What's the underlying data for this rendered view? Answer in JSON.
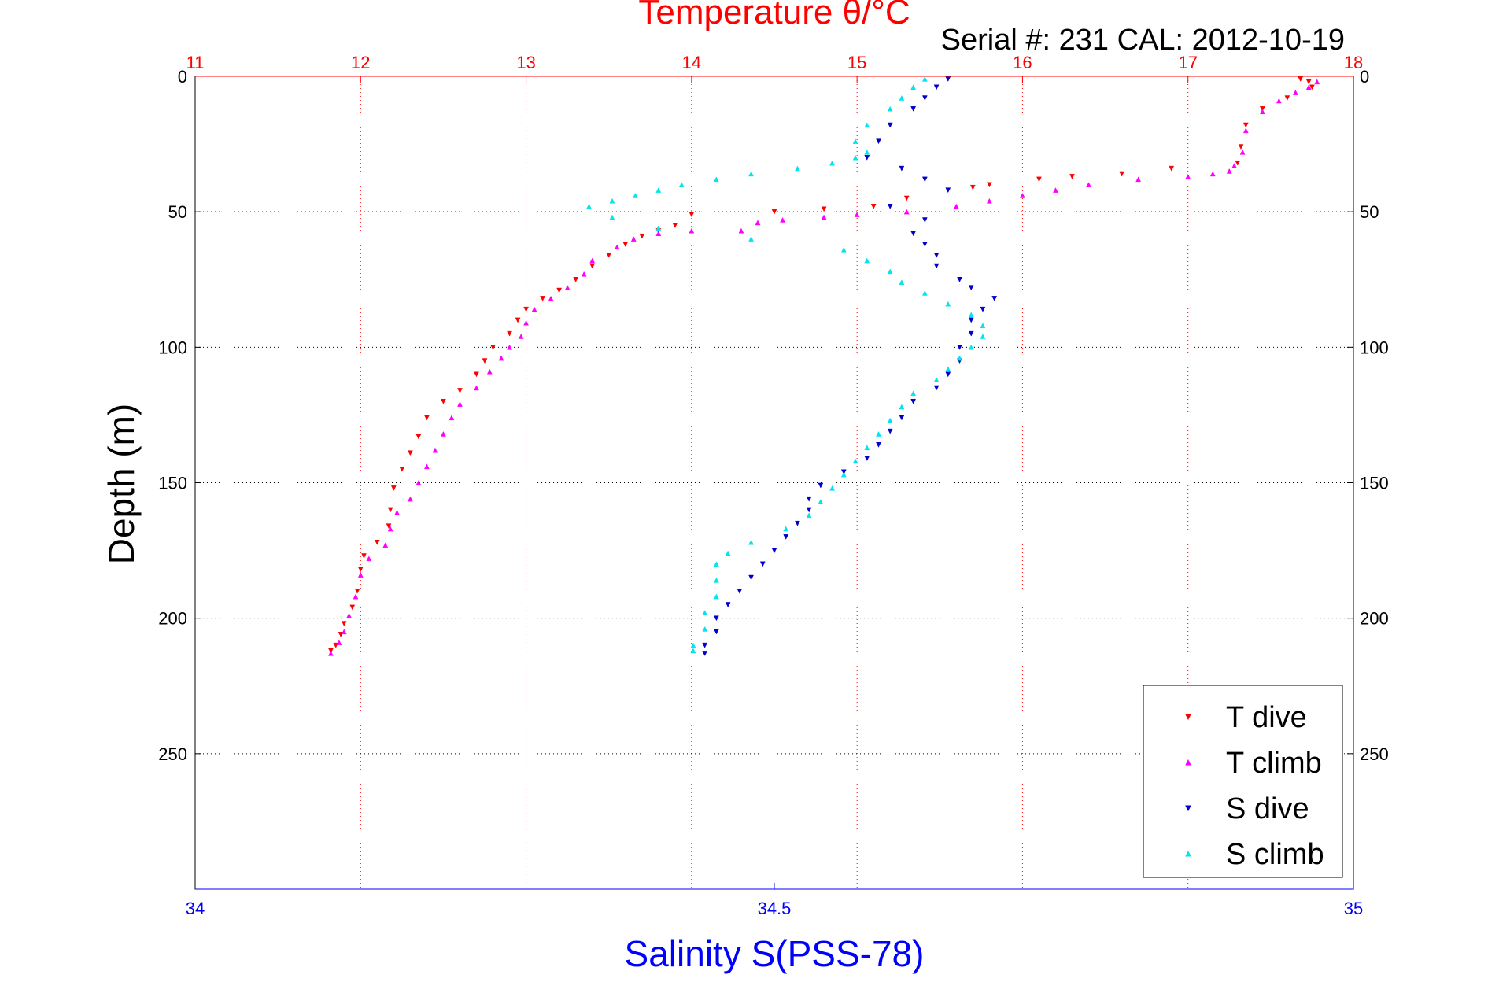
{
  "chart_data": {
    "type": "scatter",
    "title": "Temperature θ/°C",
    "subtitle": "Serial #: 231  CAL: 2012-10-19",
    "ylabel": "Depth (m)",
    "xlabel_bottom": "Salinity S(PSS-78)",
    "top_axis": {
      "label": "Temperature θ/°C",
      "min": 11,
      "max": 18,
      "ticks": [
        "11",
        "12",
        "13",
        "14",
        "15",
        "16",
        "17",
        "18"
      ]
    },
    "bottom_axis": {
      "label": "Salinity S(PSS-78)",
      "min": 34,
      "max": 35,
      "ticks": [
        "34",
        "34.5",
        "35"
      ]
    },
    "y_axis": {
      "min": 0,
      "max": 300,
      "reversed": true,
      "ticks": [
        "0",
        "50",
        "100",
        "150",
        "200",
        "250"
      ]
    },
    "grid": true,
    "legend_position": "bottom-right",
    "colors": {
      "T dive": "#ff0000",
      "T climb": "#ff00ff",
      "S dive": "#0000cc",
      "S climb": "#00e5ee"
    },
    "series": [
      {
        "name": "T dive",
        "axis": "temperature",
        "marker": "triangle-down",
        "color": "#ff0000",
        "points": [
          [
            17.68,
            1
          ],
          [
            17.73,
            2
          ],
          [
            17.75,
            4
          ],
          [
            17.6,
            8
          ],
          [
            17.45,
            12
          ],
          [
            17.35,
            18
          ],
          [
            17.32,
            26
          ],
          [
            17.3,
            32
          ],
          [
            16.9,
            34
          ],
          [
            16.6,
            36
          ],
          [
            16.3,
            37
          ],
          [
            16.1,
            38
          ],
          [
            15.8,
            40
          ],
          [
            15.7,
            41
          ],
          [
            15.3,
            45
          ],
          [
            15.1,
            48
          ],
          [
            14.8,
            49
          ],
          [
            14.5,
            50
          ],
          [
            14.0,
            51
          ],
          [
            13.9,
            55
          ],
          [
            13.8,
            57
          ],
          [
            13.7,
            59
          ],
          [
            13.6,
            62
          ],
          [
            13.5,
            66
          ],
          [
            13.4,
            70
          ],
          [
            13.3,
            75
          ],
          [
            13.2,
            79
          ],
          [
            13.1,
            82
          ],
          [
            13.0,
            86
          ],
          [
            12.95,
            90
          ],
          [
            12.9,
            95
          ],
          [
            12.8,
            100
          ],
          [
            12.75,
            105
          ],
          [
            12.7,
            110
          ],
          [
            12.6,
            116
          ],
          [
            12.5,
            120
          ],
          [
            12.4,
            126
          ],
          [
            12.35,
            133
          ],
          [
            12.3,
            139
          ],
          [
            12.25,
            145
          ],
          [
            12.2,
            152
          ],
          [
            12.18,
            160
          ],
          [
            12.17,
            166
          ],
          [
            12.1,
            172
          ],
          [
            12.02,
            177
          ],
          [
            12.0,
            182
          ],
          [
            11.98,
            190
          ],
          [
            11.95,
            196
          ],
          [
            11.9,
            202
          ],
          [
            11.88,
            206
          ],
          [
            11.85,
            210
          ],
          [
            11.82,
            212
          ]
        ]
      },
      {
        "name": "T climb",
        "axis": "temperature",
        "marker": "triangle-up",
        "color": "#ff00ff",
        "points": [
          [
            17.78,
            2
          ],
          [
            17.73,
            4
          ],
          [
            17.65,
            6
          ],
          [
            17.55,
            9
          ],
          [
            17.45,
            13
          ],
          [
            17.35,
            20
          ],
          [
            17.33,
            28
          ],
          [
            17.28,
            33
          ],
          [
            17.25,
            35
          ],
          [
            17.15,
            36
          ],
          [
            17.0,
            37
          ],
          [
            16.7,
            38
          ],
          [
            16.4,
            40
          ],
          [
            16.2,
            42
          ],
          [
            16.0,
            44
          ],
          [
            15.8,
            46
          ],
          [
            15.6,
            48
          ],
          [
            15.3,
            50
          ],
          [
            15.0,
            51
          ],
          [
            14.8,
            52
          ],
          [
            14.55,
            53
          ],
          [
            14.4,
            54
          ],
          [
            14.3,
            57
          ],
          [
            14.0,
            57
          ],
          [
            13.8,
            58
          ],
          [
            13.65,
            60
          ],
          [
            13.55,
            63
          ],
          [
            13.4,
            68
          ],
          [
            13.35,
            73
          ],
          [
            13.25,
            78
          ],
          [
            13.15,
            82
          ],
          [
            13.05,
            86
          ],
          [
            13.0,
            91
          ],
          [
            12.97,
            96
          ],
          [
            12.9,
            100
          ],
          [
            12.85,
            104
          ],
          [
            12.78,
            109
          ],
          [
            12.7,
            115
          ],
          [
            12.6,
            121
          ],
          [
            12.55,
            126
          ],
          [
            12.5,
            132
          ],
          [
            12.45,
            138
          ],
          [
            12.4,
            144
          ],
          [
            12.35,
            150
          ],
          [
            12.3,
            156
          ],
          [
            12.22,
            161
          ],
          [
            12.18,
            167
          ],
          [
            12.15,
            173
          ],
          [
            12.05,
            178
          ],
          [
            12.0,
            184
          ],
          [
            11.97,
            192
          ],
          [
            11.93,
            199
          ],
          [
            11.9,
            205
          ],
          [
            11.87,
            209
          ],
          [
            11.82,
            213
          ]
        ]
      },
      {
        "name": "S dive",
        "axis": "salinity",
        "marker": "triangle-down",
        "color": "#0000cc",
        "points": [
          [
            34.65,
            1
          ],
          [
            34.64,
            4
          ],
          [
            34.63,
            8
          ],
          [
            34.62,
            12
          ],
          [
            34.6,
            18
          ],
          [
            34.59,
            24
          ],
          [
            34.58,
            30
          ],
          [
            34.61,
            34
          ],
          [
            34.63,
            38
          ],
          [
            34.65,
            42
          ],
          [
            34.6,
            48
          ],
          [
            34.63,
            53
          ],
          [
            34.62,
            58
          ],
          [
            34.63,
            62
          ],
          [
            34.64,
            66
          ],
          [
            34.64,
            70
          ],
          [
            34.66,
            75
          ],
          [
            34.67,
            78
          ],
          [
            34.69,
            82
          ],
          [
            34.68,
            86
          ],
          [
            34.67,
            90
          ],
          [
            34.67,
            95
          ],
          [
            34.66,
            100
          ],
          [
            34.66,
            105
          ],
          [
            34.65,
            110
          ],
          [
            34.64,
            115
          ],
          [
            34.62,
            120
          ],
          [
            34.61,
            126
          ],
          [
            34.6,
            131
          ],
          [
            34.59,
            136
          ],
          [
            34.58,
            141
          ],
          [
            34.56,
            146
          ],
          [
            34.54,
            151
          ],
          [
            34.53,
            156
          ],
          [
            34.53,
            160
          ],
          [
            34.52,
            165
          ],
          [
            34.51,
            170
          ],
          [
            34.5,
            175
          ],
          [
            34.49,
            180
          ],
          [
            34.48,
            185
          ],
          [
            34.47,
            190
          ],
          [
            34.46,
            195
          ],
          [
            34.45,
            200
          ],
          [
            34.45,
            205
          ],
          [
            34.44,
            210
          ],
          [
            34.44,
            213
          ]
        ]
      },
      {
        "name": "S climb",
        "axis": "salinity",
        "marker": "triangle-up",
        "color": "#00e5ee",
        "points": [
          [
            34.63,
            1
          ],
          [
            34.62,
            4
          ],
          [
            34.61,
            8
          ],
          [
            34.6,
            12
          ],
          [
            34.58,
            18
          ],
          [
            34.57,
            24
          ],
          [
            34.58,
            28
          ],
          [
            34.57,
            30
          ],
          [
            34.55,
            32
          ],
          [
            34.52,
            34
          ],
          [
            34.48,
            36
          ],
          [
            34.45,
            38
          ],
          [
            34.42,
            40
          ],
          [
            34.4,
            42
          ],
          [
            34.38,
            44
          ],
          [
            34.36,
            46
          ],
          [
            34.34,
            48
          ],
          [
            34.36,
            52
          ],
          [
            34.4,
            56
          ],
          [
            34.48,
            60
          ],
          [
            34.56,
            64
          ],
          [
            34.58,
            68
          ],
          [
            34.6,
            72
          ],
          [
            34.61,
            76
          ],
          [
            34.63,
            80
          ],
          [
            34.65,
            84
          ],
          [
            34.67,
            88
          ],
          [
            34.68,
            92
          ],
          [
            34.68,
            96
          ],
          [
            34.67,
            100
          ],
          [
            34.66,
            104
          ],
          [
            34.65,
            108
          ],
          [
            34.64,
            112
          ],
          [
            34.62,
            117
          ],
          [
            34.61,
            122
          ],
          [
            34.6,
            127
          ],
          [
            34.59,
            132
          ],
          [
            34.58,
            137
          ],
          [
            34.57,
            142
          ],
          [
            34.56,
            147
          ],
          [
            34.55,
            152
          ],
          [
            34.54,
            157
          ],
          [
            34.53,
            162
          ],
          [
            34.51,
            167
          ],
          [
            34.48,
            172
          ],
          [
            34.46,
            176
          ],
          [
            34.45,
            180
          ],
          [
            34.45,
            186
          ],
          [
            34.45,
            192
          ],
          [
            34.44,
            198
          ],
          [
            34.44,
            204
          ],
          [
            34.43,
            210
          ],
          [
            34.43,
            212
          ]
        ]
      }
    ]
  }
}
